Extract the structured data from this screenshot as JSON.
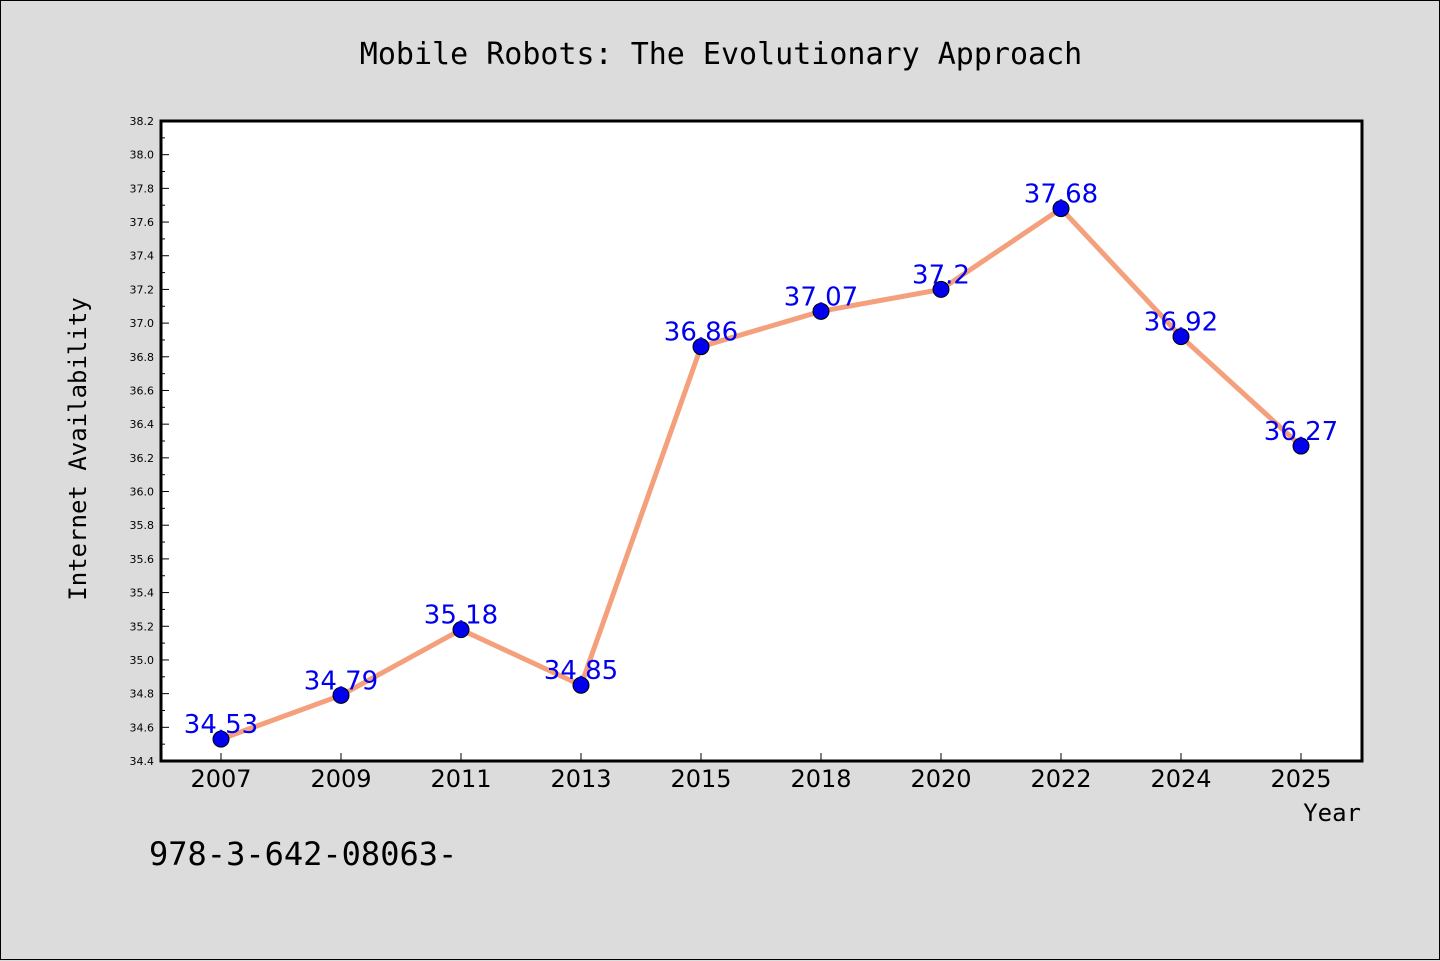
{
  "chart_data": {
    "type": "line",
    "title": "Mobile Robots: The Evolutionary Approach",
    "xlabel": "Year",
    "ylabel": "Internet Availability",
    "categories": [
      "2007",
      "2009",
      "2011",
      "2013",
      "2015",
      "2018",
      "2020",
      "2022",
      "2024",
      "2025"
    ],
    "series": [
      {
        "values": [
          34.53,
          34.79,
          35.18,
          34.85,
          36.86,
          37.07,
          37.2,
          37.68,
          36.92,
          36.27
        ],
        "labels": [
          "34.53",
          "34.79",
          "35.18",
          "34.85",
          "36.86",
          "37.07",
          "37.2",
          "37.68",
          "36.92",
          "36.27"
        ]
      }
    ],
    "ylim": [
      34.4,
      38.2
    ],
    "yticks": [
      "34.4",
      "34.6",
      "34.8",
      "35.0",
      "35.2",
      "35.4",
      "35.6",
      "35.8",
      "36.0",
      "36.2",
      "36.4",
      "36.6",
      "36.8",
      "37.0",
      "37.2",
      "37.4",
      "37.6",
      "37.8",
      "38.0",
      "38.2"
    ],
    "grid": false,
    "colors": {
      "line": "#f4a07c",
      "marker": "#0000ee",
      "label": "#0000ee",
      "plot_bg": "#ffffff",
      "page_bg": "#dcdcdc"
    }
  },
  "footnote": "978-3-642-08063-"
}
